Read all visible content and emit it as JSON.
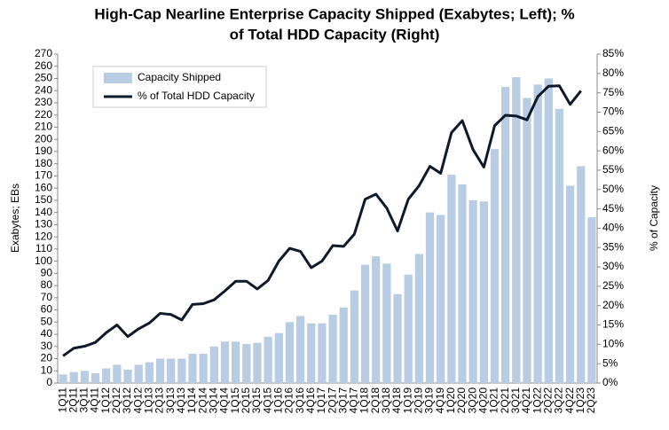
{
  "chart_data": {
    "type": "bar-line",
    "title": [
      "High-Cap Nearline Enterprise Capacity Shipped (Exabytes; Left); %",
      "of Total HDD Capacity (Right)"
    ],
    "ylabel": "Exabytes; EBs",
    "y2label": "% of Capacity",
    "categories": [
      "1Q11",
      "2Q11",
      "3Q11",
      "4Q11",
      "1Q12",
      "2Q12",
      "3Q12",
      "4Q12",
      "1Q13",
      "2Q13",
      "3Q13",
      "4Q13",
      "1Q14",
      "2Q14",
      "3Q14",
      "4Q14",
      "1Q15",
      "2Q15",
      "3Q15",
      "4Q15",
      "1Q16",
      "2Q16",
      "3Q16",
      "4Q16",
      "1Q17",
      "2Q17",
      "3Q17",
      "4Q17",
      "1Q18",
      "2Q18",
      "3Q18",
      "4Q18",
      "1Q19",
      "2Q19",
      "3Q19",
      "4Q19",
      "1Q20",
      "2Q20",
      "3Q20",
      "4Q20",
      "1Q21",
      "2Q21",
      "3Q21",
      "4Q21",
      "1Q22",
      "2Q22",
      "3Q22",
      "4Q22",
      "1Q23",
      "2Q23"
    ],
    "series": [
      {
        "name": "Capacity Shipped",
        "color": "#b8cce4",
        "type": "bar",
        "values": [
          7,
          9,
          10,
          8,
          12,
          15,
          11,
          15,
          17,
          20,
          20,
          20,
          24,
          24,
          30,
          34,
          34,
          32,
          33,
          38,
          41,
          50,
          55,
          49,
          49,
          56,
          62,
          76,
          97,
          104,
          98,
          73,
          89,
          106,
          140,
          138,
          171,
          163,
          150,
          149,
          192,
          243,
          251,
          234,
          245,
          250,
          225,
          162,
          178,
          136
        ]
      },
      {
        "name": "% of Total HDD Capacity",
        "color": "#0e1a2b",
        "type": "line",
        "axis": "y2",
        "values": [
          7,
          9,
          9.5,
          10.5,
          13,
          15,
          12,
          14,
          15.5,
          18,
          17.7,
          16.3,
          20.3,
          20.5,
          21.5,
          23.8,
          26.3,
          26.3,
          24.3,
          26.5,
          31.5,
          34.8,
          34,
          29.8,
          31.5,
          35.5,
          35.3,
          38.5,
          47.5,
          48.8,
          45.2,
          39.3,
          47.5,
          51,
          56,
          54.2,
          64.7,
          67.8,
          60.3,
          55.8,
          66.5,
          69.2,
          69,
          68,
          74,
          76.7,
          76.8,
          72,
          75.5,
          null
        ]
      }
    ],
    "ylim": [
      0,
      270
    ],
    "yticks": [
      0,
      10,
      20,
      30,
      40,
      50,
      60,
      70,
      80,
      90,
      100,
      110,
      120,
      130,
      140,
      150,
      160,
      170,
      180,
      190,
      200,
      210,
      220,
      230,
      240,
      250,
      260,
      270
    ],
    "y2lim": [
      0,
      85
    ],
    "y2ticks": [
      {
        "value": 0,
        "label": "0%"
      },
      {
        "value": 5,
        "label": "5%"
      },
      {
        "value": 10,
        "label": "10%"
      },
      {
        "value": 15,
        "label": "15%"
      },
      {
        "value": 20,
        "label": "20%"
      },
      {
        "value": 25,
        "label": "25%"
      },
      {
        "value": 30,
        "label": "30%"
      },
      {
        "value": 35,
        "label": "35%"
      },
      {
        "value": 40,
        "label": "40%"
      },
      {
        "value": 45,
        "label": "45%"
      },
      {
        "value": 50,
        "label": "50%"
      },
      {
        "value": 55,
        "label": "55%"
      },
      {
        "value": 60,
        "label": "60%"
      },
      {
        "value": 65,
        "label": "65%"
      },
      {
        "value": 70,
        "label": "70%"
      },
      {
        "value": 75,
        "label": "75%"
      },
      {
        "value": 80,
        "label": "80%"
      },
      {
        "value": 85,
        "label": "85%"
      }
    ],
    "grid": false,
    "legend": "upper-left"
  }
}
